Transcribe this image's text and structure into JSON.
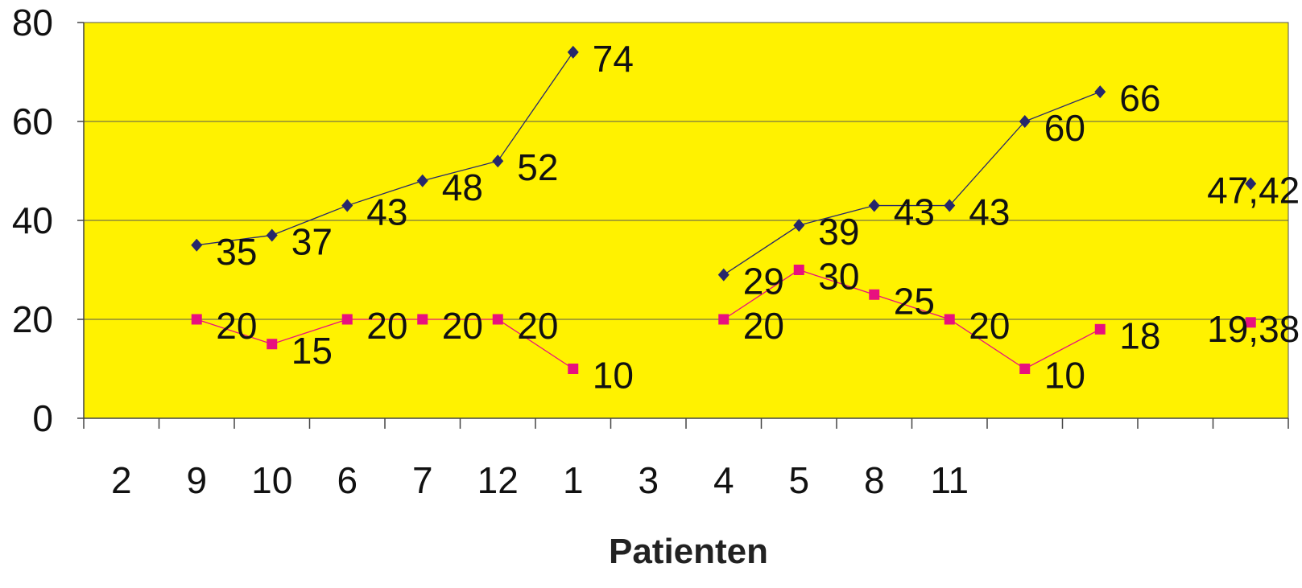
{
  "chart_data": {
    "type": "line",
    "title": "",
    "xlabel": "Patienten",
    "ylabel": "",
    "ylim": [
      0,
      80
    ],
    "yticks": [
      0,
      20,
      40,
      60,
      80
    ],
    "grid": true,
    "categories": [
      "2",
      "9",
      "10",
      "6",
      "7",
      "12",
      "1",
      "3",
      "4",
      "5",
      "8",
      "11",
      "",
      "",
      "",
      ""
    ],
    "plot_background": "#fff200",
    "series": [
      {
        "color": "#27286b",
        "marker": "diamond",
        "values": [
          null,
          35,
          37,
          43,
          48,
          52,
          74,
          null,
          29,
          39,
          43,
          43,
          60,
          66,
          null,
          47.42
        ],
        "labels": [
          null,
          "35",
          "37",
          "43",
          "48",
          "52",
          "74",
          null,
          "29",
          "39",
          "43",
          "43",
          "60",
          "66",
          null,
          "47,42"
        ]
      },
      {
        "color": "#e8107f",
        "marker": "square",
        "values": [
          null,
          20,
          15,
          20,
          20,
          20,
          10,
          null,
          20,
          30,
          25,
          20,
          10,
          18,
          null,
          19.38
        ],
        "labels": [
          null,
          "20",
          "15",
          "20",
          "20",
          "20",
          "10",
          null,
          "20",
          "30",
          "25",
          "20",
          "10",
          "18",
          null,
          "19,38"
        ]
      }
    ]
  }
}
